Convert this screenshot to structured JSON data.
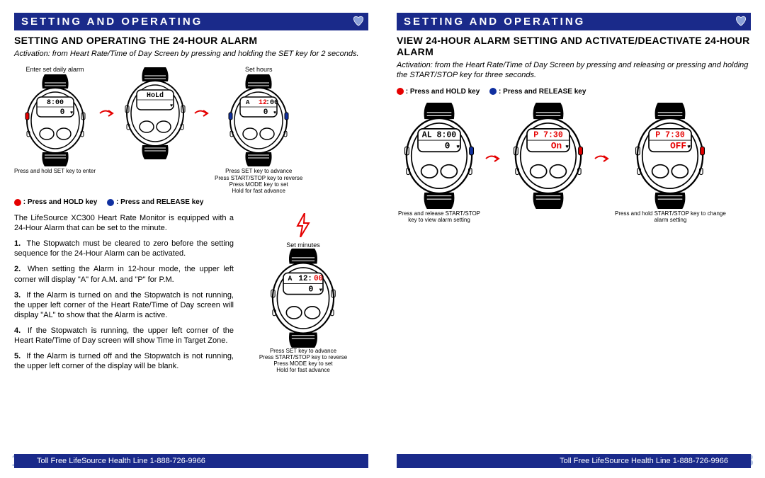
{
  "colors": {
    "brand_blue": "#1a2a8a",
    "red": "#e50000",
    "blue": "#1030a0",
    "pagenum": "#b0c0e0"
  },
  "left_page": {
    "header": "SETTING AND OPERATING",
    "title": "SETTING AND OPERATING THE 24-HOUR ALARM",
    "activation": "Activation: from Heart Rate/Time of Day Screen by pressing and holding the SET key for 2 seconds.",
    "watches": [
      {
        "above": "Enter set daily alarm",
        "display_top": "8:00",
        "display_bot": "0",
        "below": "Press and hold SET key to enter",
        "left_btn": "red",
        "right_btn": ""
      },
      {
        "above": "",
        "display_top": "HoLd",
        "display_bot": "",
        "below": "",
        "left_btn": "",
        "right_btn": ""
      },
      {
        "above": "Set hours",
        "display_top": "A  12:00",
        "display_bot": "0",
        "below": "Press SET key to advance\nPress START/STOP key to reverse\nPress MODE key to set\nHold for fast advance",
        "left_btn": "blue",
        "right_btn": "blue",
        "hour_red": true
      }
    ],
    "legend": {
      "hold": ": Press and HOLD key",
      "release": ": Press and RELEASE key"
    },
    "intro_para": "The LifeSource XC300 Heart Rate Monitor is equipped with a 24-Hour Alarm that can be set to the minute.",
    "steps": [
      "The Stopwatch must be cleared to zero before the setting sequence for the 24-Hour Alarm can be activated.",
      "When setting the Alarm in 12-hour mode, the upper left corner will display \"A\" for A.M. and \"P\" for P.M.",
      "If the Alarm is turned on and the Stopwatch is not running, the upper left corner of the Heart Rate/Time of Day screen will display \"AL\" to show that the Alarm is active.",
      "If the Stopwatch is running, the upper left corner of the Heart Rate/Time of Day screen will show Time in Target Zone.",
      "If the Alarm is turned off and the Stopwatch is not running, the upper left corner of the display will be blank."
    ],
    "right_col": {
      "above": "Set minutes",
      "display_top": "A  12:00",
      "display_bot": "0",
      "below": "Press SET key to advance\nPress START/STOP key to reverse\nPress MODE key to set\nHold for fast advance",
      "min_red": true
    },
    "footer": "Toll Free LifeSource Health Line 1-888-726-9966",
    "page_num": "12"
  },
  "right_page": {
    "header": "SETTING AND OPERATING",
    "title": "VIEW 24-HOUR ALARM SETTING AND ACTIVATE/DEACTIVATE 24-HOUR ALARM",
    "activation": "Activation: from the Heart Rate/Time of Day Screen by pressing and releasing or pressing and holding the START/STOP key for three seconds.",
    "legend": {
      "hold": ": Press and HOLD key",
      "release": ": Press and RELEASE key"
    },
    "watches": [
      {
        "above": "",
        "display_top": "AL  8:00",
        "display_bot": "0",
        "below": "Press and release START/STOP\nkey to view alarm setting",
        "left_btn": "",
        "right_btn": "blue"
      },
      {
        "above": "",
        "display_top": "P   7:30",
        "display_bot": "On",
        "below": "",
        "left_btn": "",
        "right_btn": "red",
        "all_red": true
      },
      {
        "above": "",
        "display_top": "P   7:30",
        "display_bot": "OFF",
        "below": "Press and hold START/STOP key to change\nalarm setting",
        "left_btn": "",
        "right_btn": "red",
        "all_red": true
      }
    ],
    "footer": "Toll Free LifeSource Health Line 1-888-726-9966",
    "page_num": "13"
  }
}
